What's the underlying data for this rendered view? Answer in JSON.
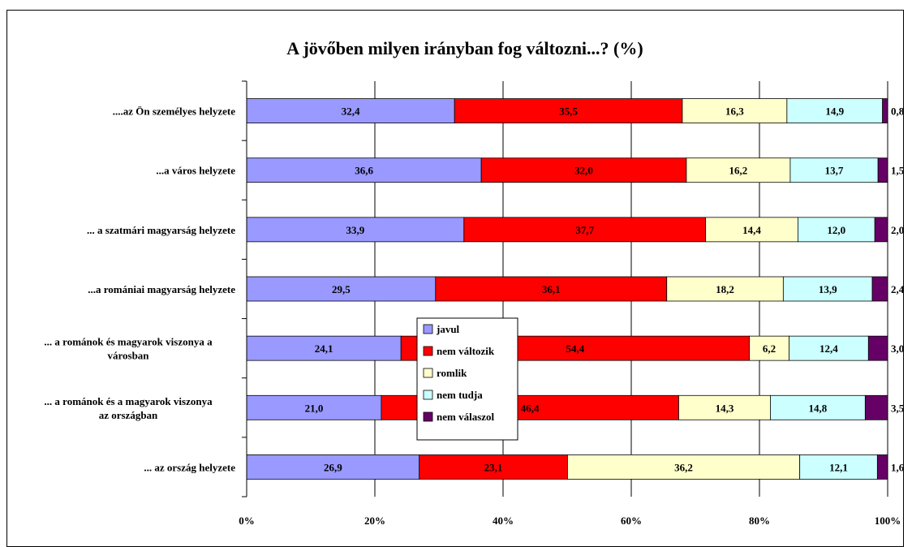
{
  "chart_data": {
    "type": "bar",
    "orientation": "horizontal",
    "stacked": "percent",
    "title": "A jövőben milyen irányban fog változni...? (%)",
    "categories": [
      [
        "....az Ön személyes helyzete"
      ],
      [
        "...a város helyzete"
      ],
      [
        "... a szatmári magyarság helyzete"
      ],
      [
        "...a romániai magyarság helyzete"
      ],
      [
        "... a románok és magyarok viszonya a",
        "városban"
      ],
      [
        "... a románok és a magyarok viszonya",
        "az országban"
      ],
      [
        "... az ország helyzete"
      ]
    ],
    "series": [
      {
        "name": "javul",
        "color": "#9999ff",
        "values": [
          32.4,
          36.6,
          33.9,
          29.5,
          24.1,
          21.0,
          26.9
        ],
        "labels": [
          "32,4",
          "36,6",
          "33,9",
          "29,5",
          "24,1",
          "21,0",
          "26,9"
        ]
      },
      {
        "name": "nem változik",
        "color": "#ff0000",
        "values": [
          35.5,
          32.0,
          37.7,
          36.1,
          54.4,
          46.4,
          23.1
        ],
        "labels": [
          "35,5",
          "32,0",
          "37,7",
          "36,1",
          "54,4",
          "46,4",
          "23,1"
        ]
      },
      {
        "name": "romlik",
        "color": "#ffffcc",
        "values": [
          16.3,
          16.2,
          14.4,
          18.2,
          6.2,
          14.3,
          36.2
        ],
        "labels": [
          "16,3",
          "16,2",
          "14,4",
          "18,2",
          "6,2",
          "14,3",
          "36,2"
        ]
      },
      {
        "name": "nem tudja",
        "color": "#ccffff",
        "values": [
          14.9,
          13.7,
          12.0,
          13.9,
          12.4,
          14.8,
          12.1
        ],
        "labels": [
          "14,9",
          "13,7",
          "12,0",
          "13,9",
          "12,4",
          "14,8",
          "12,1"
        ]
      },
      {
        "name": "nem válaszol",
        "color": "#660066",
        "values": [
          0.8,
          1.5,
          2.0,
          2.4,
          3.0,
          3.5,
          1.6
        ],
        "labels": [
          "0,8",
          "1,5",
          "2,0",
          "2,4",
          "3,0",
          "3,5",
          "1,6"
        ]
      }
    ],
    "xlim": [
      0,
      100
    ],
    "xticks": [
      0,
      20,
      40,
      60,
      80,
      100
    ],
    "xtick_labels": [
      "0%",
      "20%",
      "40%",
      "60%",
      "80%",
      "100%"
    ],
    "grid": "vertical",
    "legend": {
      "position": "center",
      "entries": [
        "javul",
        "nem változik",
        "romlik",
        "nem tudja",
        "nem válaszol"
      ]
    }
  }
}
